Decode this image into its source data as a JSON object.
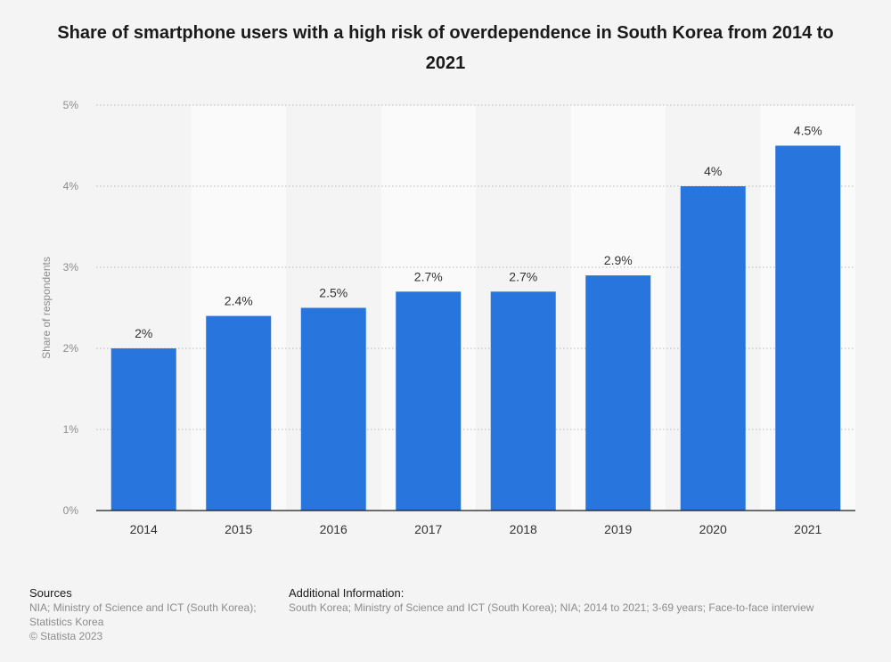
{
  "chart_data": {
    "type": "bar",
    "title": "Share of smartphone users with a high risk of overdependence in South Korea from 2014 to 2021",
    "categories": [
      "2014",
      "2015",
      "2016",
      "2017",
      "2018",
      "2019",
      "2020",
      "2021"
    ],
    "values": [
      2,
      2.4,
      2.5,
      2.7,
      2.7,
      2.9,
      4,
      4.5
    ],
    "data_labels": [
      "2%",
      "2.4%",
      "2.5%",
      "2.7%",
      "2.7%",
      "2.9%",
      "4%",
      "4.5%"
    ],
    "xlabel": "",
    "ylabel": "Share of respondents",
    "ylim": [
      0,
      5
    ],
    "yticks": [
      0,
      1,
      2,
      3,
      4,
      5
    ],
    "ytick_labels": [
      "0%",
      "1%",
      "2%",
      "3%",
      "4%",
      "5%"
    ],
    "grid": true,
    "colors": {
      "bar": "#2876dd",
      "band": "#fafafa",
      "background": "#f4f4f4"
    }
  },
  "footer": {
    "sources_heading": "Sources",
    "sources_line1": "NIA; Ministry of Science and ICT (South Korea);",
    "sources_line2": "Statistics Korea",
    "copyright": "© Statista 2023",
    "info_heading": "Additional Information:",
    "info_text": "South Korea; Ministry of Science and ICT (South Korea); NIA; 2014 to 2021; 3-69 years; Face-to-face interview"
  }
}
